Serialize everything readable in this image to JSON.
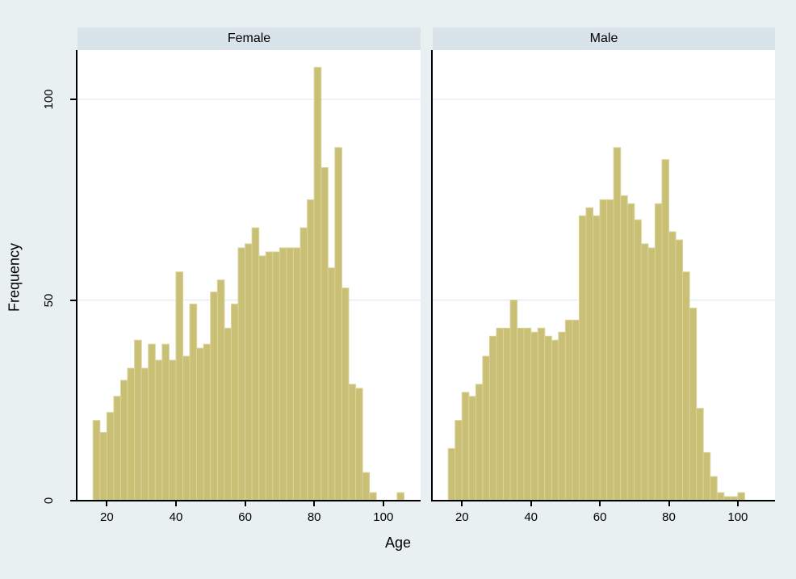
{
  "figure": {
    "y_axis_title": "Frequency",
    "x_axis_title": "Age",
    "colors": {
      "background": "#e9f0f2",
      "panel_header_bg": "#d9e3ea",
      "plot_bg": "#ffffff",
      "bar_fill": "#c9bf75",
      "bar_stroke": "#d9d39c",
      "gridline": "#dce8ed",
      "axis": "#000000",
      "text": "#000000"
    }
  },
  "chart_data": {
    "type": "bar",
    "kind": "faceted-histogram",
    "title": "",
    "xlabel": "Age",
    "ylabel": "Frequency",
    "bin_width": 2,
    "x_ticks": [
      20,
      40,
      60,
      80,
      100
    ],
    "y_ticks": [
      0,
      50,
      100
    ],
    "xlim": [
      11.5,
      110.8
    ],
    "ylim": [
      0,
      112.3
    ],
    "grid": true,
    "legend_position": "none",
    "panels": [
      {
        "label": "Female",
        "bin_start": 16,
        "values": [
          20,
          17,
          22,
          26,
          30,
          33,
          40,
          33,
          39,
          35,
          39,
          35,
          57,
          36,
          49,
          38,
          39,
          52,
          55,
          43,
          49,
          63,
          64,
          68,
          61,
          62,
          62,
          63,
          63,
          63,
          68,
          75,
          108,
          83,
          58,
          88,
          53,
          29,
          28,
          7,
          2,
          0,
          0,
          0,
          2
        ]
      },
      {
        "label": "Male",
        "bin_start": 16,
        "values": [
          13,
          20,
          27,
          26,
          29,
          36,
          41,
          43,
          43,
          50,
          43,
          43,
          42,
          43,
          41,
          40,
          42,
          45,
          45,
          71,
          73,
          71,
          75,
          75,
          88,
          76,
          74,
          70,
          64,
          63,
          74,
          85,
          67,
          65,
          57,
          48,
          23,
          12,
          6,
          2,
          1,
          1,
          2
        ]
      }
    ]
  }
}
